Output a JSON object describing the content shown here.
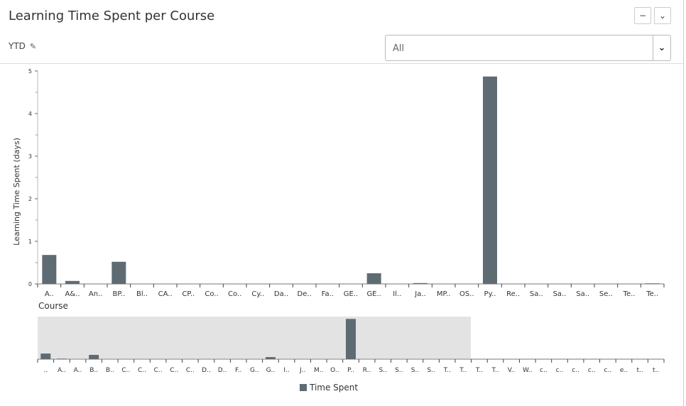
{
  "header": {
    "title": "Learning Time Spent per Course",
    "minimize_label": "−",
    "expand_label": "⌄"
  },
  "filter": {
    "period_label": "YTD",
    "period_edit_icon": "pencil-icon",
    "select_value": "All"
  },
  "colors": {
    "bar": "#5f6b73",
    "brush": "#e3e3e3",
    "axis": "#bbbbbb"
  },
  "chart_data": [
    {
      "type": "bar",
      "title": "",
      "xlabel": "Course",
      "ylabel": "Learning Time Spent (days)",
      "ylim": [
        0,
        5
      ],
      "yticks": [
        0,
        1,
        2,
        3,
        4,
        5
      ],
      "grid": false,
      "categories": [
        "A..",
        "A&..",
        "An..",
        "BP..",
        "Bl..",
        "CA..",
        "CP..",
        "Co..",
        "Co..",
        "Cy..",
        "Da..",
        "De..",
        "Fa..",
        "GE..",
        "GE..",
        "Il..",
        "Ja..",
        "MP..",
        "OS..",
        "Py..",
        "Re..",
        "Sa..",
        "Sa..",
        "Sa..",
        "Se..",
        "Te..",
        "Te.."
      ],
      "series": [
        {
          "name": "Time Spent",
          "values": [
            0.68,
            0.07,
            0,
            0.52,
            0,
            0,
            0,
            0,
            0,
            0,
            0,
            0,
            0,
            0,
            0.25,
            0,
            0.02,
            0,
            0,
            4.87,
            0,
            0,
            0,
            0,
            0,
            0,
            0.01
          ]
        }
      ]
    },
    {
      "type": "bar",
      "role": "overview-brush",
      "ylim": [
        0,
        5
      ],
      "brush_range": [
        "..",
        "T.."
      ],
      "categories": [
        "..",
        "A..",
        "A..",
        "B..",
        "B..",
        "C..",
        "C..",
        "C..",
        "C..",
        "C..",
        "D..",
        "D..",
        "F..",
        "G..",
        "G..",
        "I..",
        "J..",
        "M..",
        "O..",
        "P..",
        "R..",
        "S..",
        "S..",
        "S..",
        "S..",
        "T..",
        "T..",
        "T..",
        "T..",
        "V..",
        "W..",
        "c..",
        "c..",
        "c..",
        "c..",
        "c..",
        "e..",
        "t..",
        "t.."
      ],
      "series": [
        {
          "name": "Time Spent",
          "values": [
            0.68,
            0.05,
            0,
            0.52,
            0,
            0,
            0,
            0,
            0,
            0,
            0,
            0,
            0,
            0,
            0.25,
            0,
            0,
            0,
            0,
            4.87,
            0,
            0,
            0,
            0,
            0,
            0,
            0,
            0,
            0,
            0,
            0,
            0,
            0,
            0,
            0,
            0,
            0,
            0,
            0
          ]
        }
      ]
    }
  ],
  "legend": {
    "label": "Time Spent"
  }
}
